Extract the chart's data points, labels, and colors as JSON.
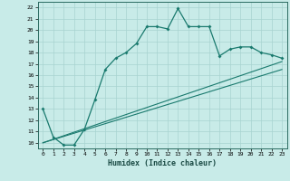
{
  "title": "",
  "xlabel": "Humidex (Indice chaleur)",
  "ylabel": "",
  "background_color": "#c8ebe8",
  "line_color": "#1a7a6e",
  "grid_color": "#a8d4d0",
  "xlim": [
    -0.5,
    23.5
  ],
  "ylim": [
    9.5,
    22.5
  ],
  "xticks": [
    0,
    1,
    2,
    3,
    4,
    5,
    6,
    7,
    8,
    9,
    10,
    11,
    12,
    13,
    14,
    15,
    16,
    17,
    18,
    19,
    20,
    21,
    22,
    23
  ],
  "yticks": [
    10,
    11,
    12,
    13,
    14,
    15,
    16,
    17,
    18,
    19,
    20,
    21,
    22
  ],
  "main_x": [
    0,
    1,
    2,
    3,
    4,
    5,
    6,
    7,
    8,
    9,
    10,
    11,
    12,
    13,
    14,
    15,
    16,
    17,
    18,
    19,
    20,
    21,
    22,
    23
  ],
  "main_y": [
    13.0,
    10.5,
    9.8,
    9.8,
    11.2,
    13.8,
    16.5,
    17.5,
    18.0,
    18.8,
    20.3,
    20.3,
    20.1,
    21.9,
    20.3,
    20.3,
    20.3,
    17.7,
    18.3,
    18.5,
    18.5,
    18.0,
    17.8,
    17.5
  ],
  "line1_x": [
    0,
    23
  ],
  "line1_y": [
    10.0,
    16.5
  ],
  "line2_x": [
    0,
    23
  ],
  "line2_y": [
    10.0,
    17.2
  ]
}
